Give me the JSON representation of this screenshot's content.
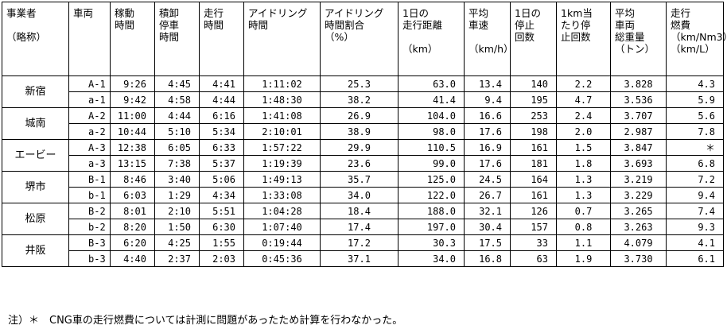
{
  "headers": [
    {
      "lines": [
        "事業者",
        "",
        "（略称）"
      ]
    },
    {
      "lines": [
        "車両"
      ]
    },
    {
      "lines": [
        "稼動",
        "時間"
      ]
    },
    {
      "lines": [
        "積卸",
        "停車",
        "時間"
      ]
    },
    {
      "lines": [
        "走行",
        "時間"
      ]
    },
    {
      "lines": [
        "アイドリング",
        "時間"
      ]
    },
    {
      "lines": [
        "アイドリング",
        "時間割合",
        "（%）"
      ]
    },
    {
      "lines": [
        "1日の",
        "走行距離",
        "",
        "（km）"
      ]
    },
    {
      "lines": [
        "平均",
        "車速",
        "",
        "（km/h）"
      ]
    },
    {
      "lines": [
        "1日の",
        "停止",
        "回数"
      ]
    },
    {
      "lines": [
        "1km当",
        "たり停",
        "止回数"
      ]
    },
    {
      "lines": [
        "平均",
        "車両",
        "総重量",
        "（トン）"
      ]
    },
    {
      "lines": [
        "走行",
        "燃費",
        "（km/Nm3）",
        "（km/L）"
      ]
    }
  ],
  "groups": [
    {
      "name": "新宿",
      "rows": [
        [
          "A-1",
          "9:26",
          "4:45",
          "4:41",
          "1:11:02",
          "25.3",
          "63.0",
          "13.4",
          "140",
          "2.2",
          "3.828",
          "4.3"
        ],
        [
          "a-1",
          "9:42",
          "4:58",
          "4:44",
          "1:48:30",
          "38.2",
          "41.4",
          "9.4",
          "195",
          "4.7",
          "3.536",
          "5.9"
        ]
      ]
    },
    {
      "name": "城南",
      "rows": [
        [
          "A-2",
          "11:00",
          "4:44",
          "6:16",
          "1:41:08",
          "26.9",
          "104.0",
          "16.6",
          "253",
          "2.4",
          "3.707",
          "5.6"
        ],
        [
          "a-2",
          "10:44",
          "5:10",
          "5:34",
          "2:10:01",
          "38.9",
          "98.0",
          "17.6",
          "198",
          "2.0",
          "2.987",
          "7.8"
        ]
      ]
    },
    {
      "name": "エービー",
      "rows": [
        [
          "A-3",
          "12:38",
          "6:05",
          "6:33",
          "1:57:22",
          "29.9",
          "110.5",
          "16.9",
          "161",
          "1.5",
          "3.847",
          "＊"
        ],
        [
          "a-3",
          "13:15",
          "7:38",
          "5:37",
          "1:19:39",
          "23.6",
          "99.0",
          "17.6",
          "181",
          "1.8",
          "3.693",
          "6.8"
        ]
      ]
    },
    {
      "name": "堺市",
      "rows": [
        [
          "B-1",
          "8:46",
          "3:40",
          "5:06",
          "1:49:13",
          "35.7",
          "125.0",
          "24.5",
          "164",
          "1.3",
          "3.219",
          "7.2"
        ],
        [
          "b-1",
          "6:03",
          "1:29",
          "4:34",
          "1:33:08",
          "34.0",
          "122.0",
          "26.7",
          "161",
          "1.3",
          "3.229",
          "9.4"
        ]
      ]
    },
    {
      "name": "松原",
      "rows": [
        [
          "B-2",
          "8:01",
          "2:10",
          "5:51",
          "1:04:28",
          "18.4",
          "188.0",
          "32.1",
          "126",
          "0.7",
          "3.265",
          "7.4"
        ],
        [
          "b-2",
          "8:20",
          "1:50",
          "6:30",
          "1:07:40",
          "17.4",
          "197.0",
          "30.4",
          "157",
          "0.8",
          "3.263",
          "9.3"
        ]
      ]
    },
    {
      "name": "井阪",
      "rows": [
        [
          "B-3",
          "6:20",
          "4:25",
          "1:55",
          "0:19:44",
          "17.2",
          "30.3",
          "17.5",
          "33",
          "1.1",
          "4.079",
          "4.1"
        ],
        [
          "b-3",
          "4:40",
          "2:37",
          "2:03",
          "0:45:36",
          "37.1",
          "34.0",
          "16.8",
          "63",
          "1.9",
          "3.730",
          "6.1"
        ]
      ]
    }
  ],
  "note": "注）＊　CNG車の走行燃費については計測に問題があったため計算を行わなかった。"
}
